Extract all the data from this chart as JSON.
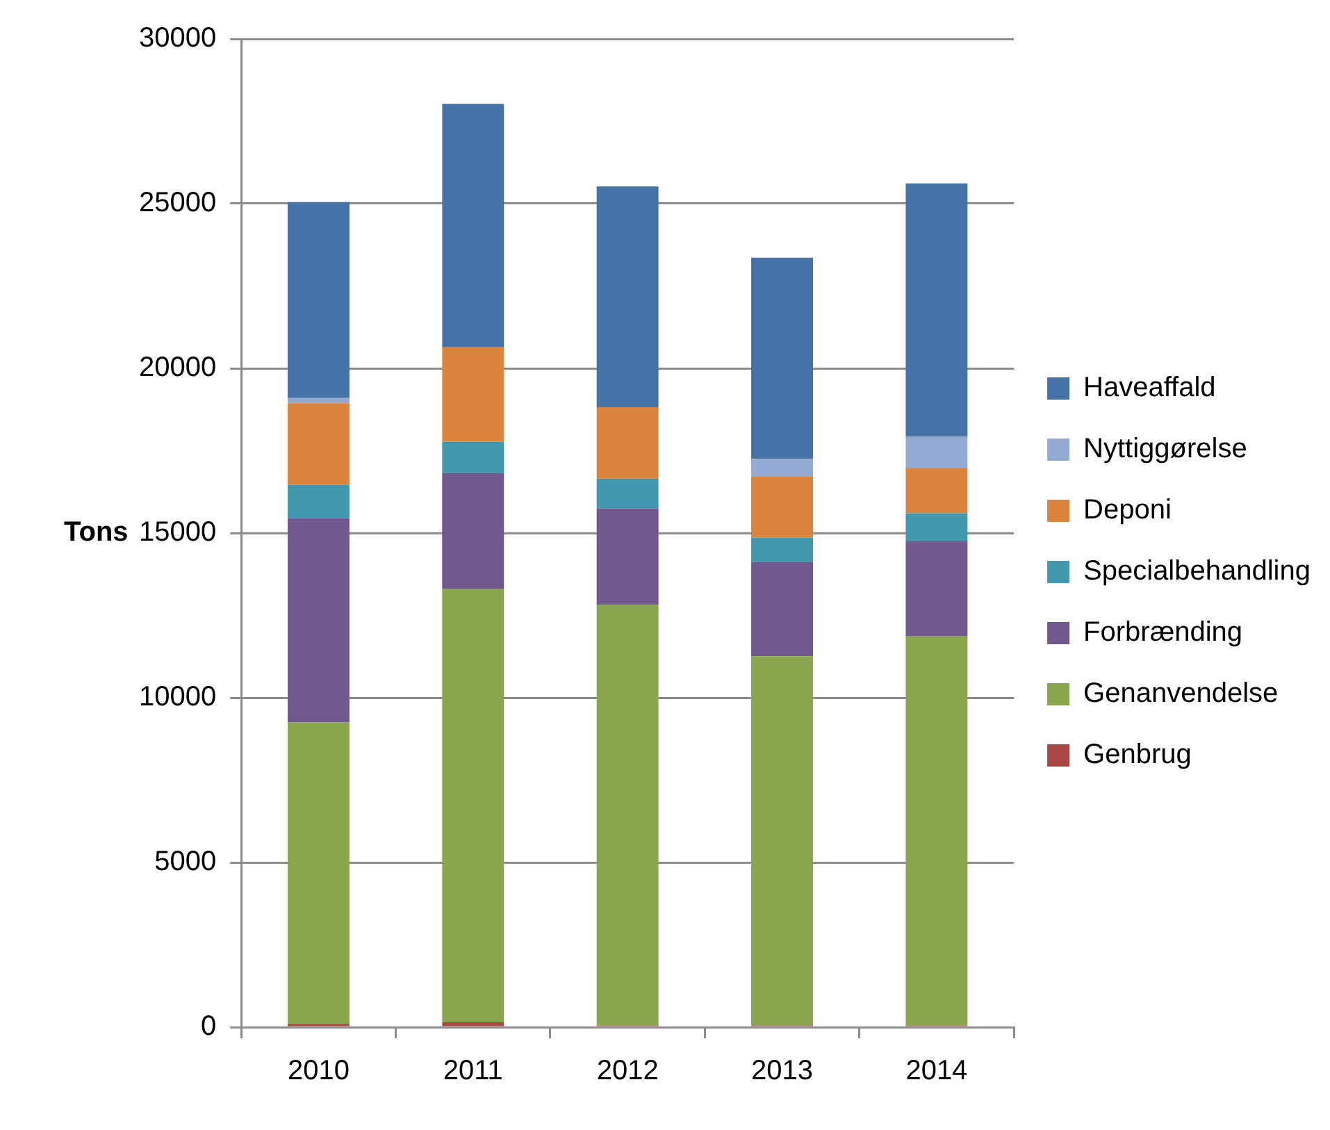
{
  "chart_data": {
    "type": "bar",
    "ylabel": "Tons",
    "categories": [
      "2010",
      "2011",
      "2012",
      "2013",
      "2014"
    ],
    "stacked": true,
    "grid": "y",
    "legend": "right",
    "ylim": [
      0,
      30000
    ],
    "yticks": [
      0,
      5000,
      10000,
      15000,
      20000,
      25000,
      30000
    ],
    "series": [
      {
        "name": "Genbrug",
        "color": "#aa4643",
        "values": [
          100,
          150,
          50,
          50,
          50
        ]
      },
      {
        "name": "Genanvendelse",
        "color": "#89a54e",
        "values": [
          9150,
          13160,
          12770,
          11210,
          11830
        ]
      },
      {
        "name": "Forbrænding",
        "color": "#71588f",
        "values": [
          6200,
          3510,
          2930,
          2860,
          2870
        ]
      },
      {
        "name": "Specialbehandling",
        "color": "#4198af",
        "values": [
          1010,
          950,
          900,
          740,
          850
        ]
      },
      {
        "name": "Deponi",
        "color": "#db843d",
        "values": [
          2480,
          2870,
          2170,
          1850,
          1380
        ]
      },
      {
        "name": "Nyttiggørelse",
        "color": "#94aad2",
        "values": [
          160,
          0,
          0,
          540,
          940
        ]
      },
      {
        "name": "Haveaffald",
        "color": "#4573a7",
        "values": [
          5950,
          7390,
          6700,
          6110,
          7690
        ]
      }
    ]
  }
}
